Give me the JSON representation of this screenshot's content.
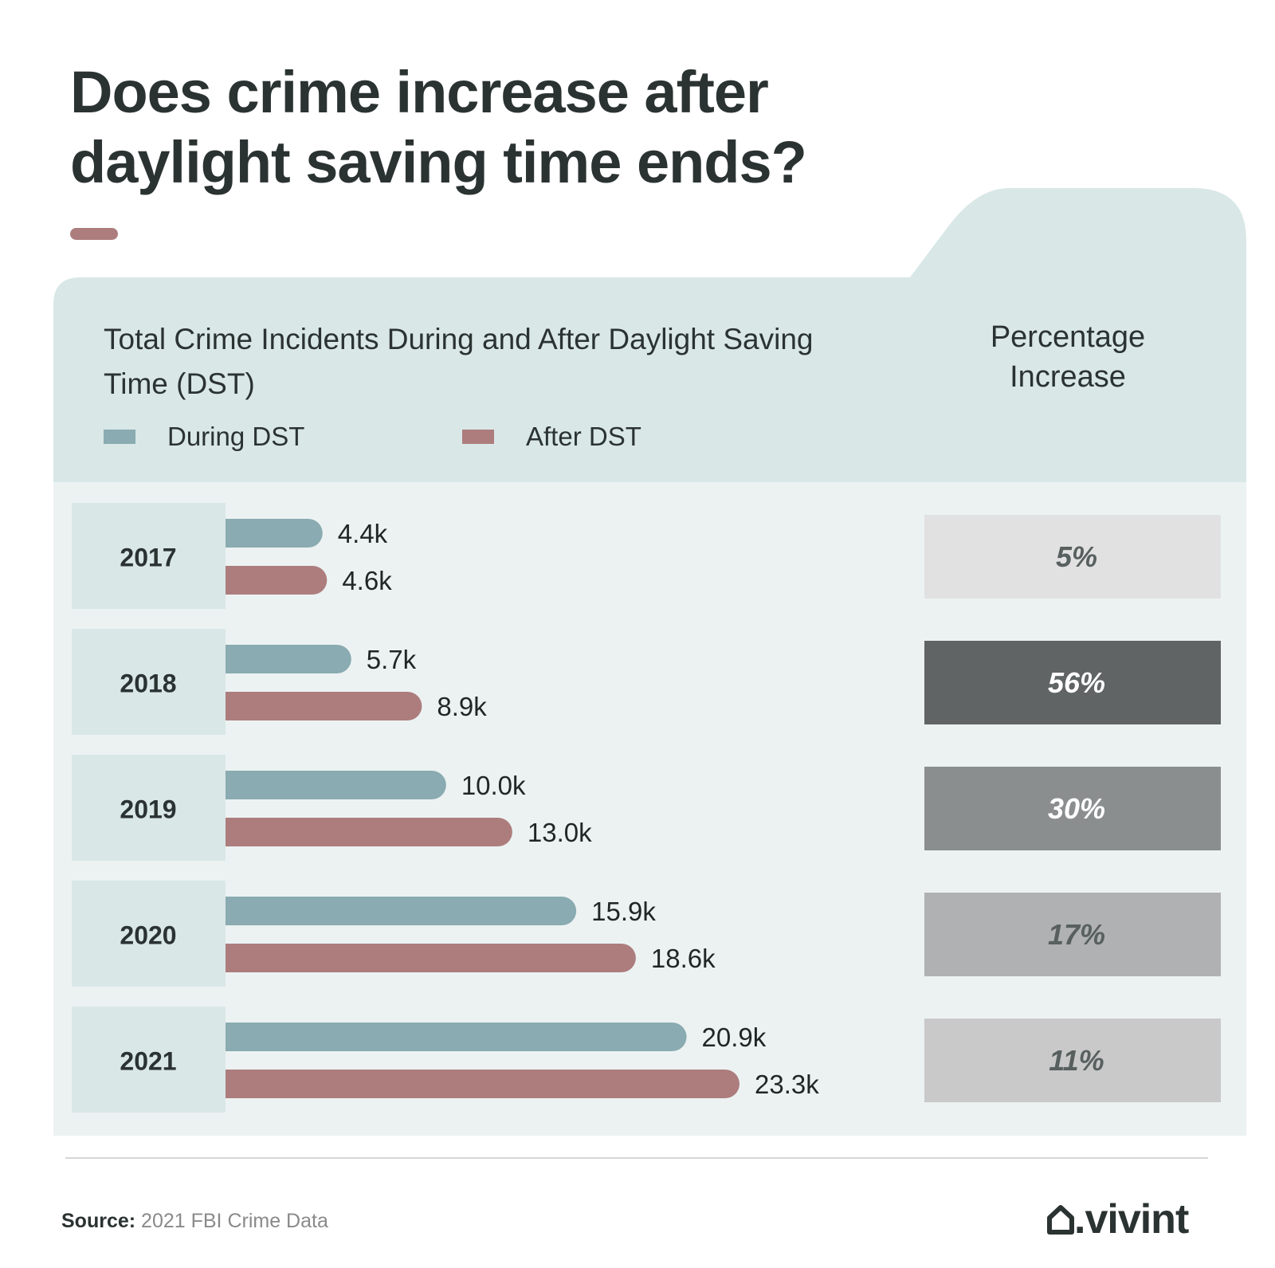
{
  "title": "Does crime increase after daylight saving time ends?",
  "colors": {
    "during": "#89abb1",
    "after": "#ad7d7e",
    "panel": "#d9e7e7",
    "body": "#ecf2f2",
    "text": "#2b3332",
    "accent": "#ad7d7e"
  },
  "chart_data": {
    "type": "bar",
    "orientation": "horizontal",
    "title": "Total Crime Incidents During and After Daylight Saving Time (DST)",
    "categories": [
      "2017",
      "2018",
      "2019",
      "2020",
      "2021"
    ],
    "series": [
      {
        "name": "During DST",
        "values": [
          4400,
          5700,
          10000,
          15900,
          20900
        ],
        "labels": [
          "4.4k",
          "5.7k",
          "10.0k",
          "15.9k",
          "20.9k"
        ]
      },
      {
        "name": "After DST",
        "values": [
          4600,
          8900,
          13000,
          18600,
          23300
        ],
        "labels": [
          "4.6k",
          "8.9k",
          "13.0k",
          "18.6k",
          "23.3k"
        ]
      }
    ],
    "percentage_header": "Percentage Increase",
    "percentage_increase": [
      {
        "label": "5%",
        "value": 5,
        "fill": "#e1e1e1",
        "text_color": "#58605f"
      },
      {
        "label": "56%",
        "value": 56,
        "fill": "#606465",
        "text_color": "#ffffff"
      },
      {
        "label": "30%",
        "value": 30,
        "fill": "#8b8e8f",
        "text_color": "#ffffff"
      },
      {
        "label": "17%",
        "value": 17,
        "fill": "#b0b1b2",
        "text_color": "#58605f"
      },
      {
        "label": "11%",
        "value": 11,
        "fill": "#c9c9c9",
        "text_color": "#58605f"
      }
    ],
    "legend_position": "top-left",
    "grid": false
  },
  "footer": {
    "source_label": "Source:",
    "source_text": "2021 FBI Crime Data",
    "logo": ".vivint",
    "logo_icon": "house-icon"
  }
}
